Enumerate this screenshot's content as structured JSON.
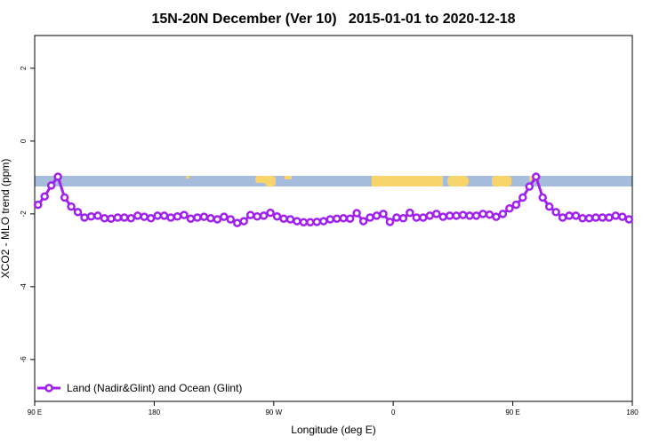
{
  "chart_data": {
    "type": "line",
    "title": "15N-20N December (Ver 10)   2015-01-01 to 2020-12-18",
    "x_label": "Longitude (deg E)",
    "y_label": "XCO2 - MLO trend (ppm)",
    "xlim": [
      90,
      540
    ],
    "xticks": [
      {
        "value": 90,
        "label": "90 E"
      },
      {
        "value": 180,
        "label": "180"
      },
      {
        "value": 270,
        "label": "90 W"
      },
      {
        "value": 360,
        "label": "0"
      },
      {
        "value": 450,
        "label": "90 E"
      },
      {
        "value": 540,
        "label": "180"
      }
    ],
    "ylim": [
      -7.15,
      2.9
    ],
    "yticks": [
      -6,
      -4,
      -2,
      0,
      2
    ],
    "legend": "bottom-left",
    "x": [
      92.5,
      97.5,
      102.5,
      107.5,
      112.5,
      117.5,
      122.5,
      127.5,
      132.5,
      137.5,
      142.5,
      147.5,
      152.5,
      157.5,
      162.5,
      167.5,
      172.5,
      177.5,
      182.5,
      187.5,
      192.5,
      197.5,
      202.5,
      207.5,
      212.5,
      217.5,
      222.5,
      227.5,
      232.5,
      237.5,
      242.5,
      247.5,
      252.5,
      257.5,
      262.5,
      267.5,
      272.5,
      277.5,
      282.5,
      287.5,
      292.5,
      297.5,
      302.5,
      307.5,
      312.5,
      317.5,
      322.5,
      327.5,
      332.5,
      337.5,
      342.5,
      347.5,
      352.5,
      357.5,
      362.5,
      367.5,
      372.5,
      377.5,
      382.5,
      387.5,
      392.5,
      397.5,
      402.5,
      407.5,
      412.5,
      417.5,
      422.5,
      427.5,
      432.5,
      437.5,
      442.5,
      447.5,
      452.5,
      457.5,
      462.5,
      467.5,
      472.5,
      477.5,
      482.5,
      487.5,
      492.5,
      497.5,
      502.5,
      507.5,
      512.5,
      517.5,
      522.5,
      527.5,
      532.5,
      537.5
    ],
    "series": [
      {
        "name": "Land (Nadir&Glint) and Ocean (Glint)",
        "color": "#a020f0",
        "values": [
          -1.75,
          -1.52,
          -1.22,
          -0.98,
          -1.55,
          -1.8,
          -1.95,
          -2.1,
          -2.07,
          -2.05,
          -2.12,
          -2.13,
          -2.1,
          -2.1,
          -2.12,
          -2.05,
          -2.08,
          -2.12,
          -2.05,
          -2.05,
          -2.1,
          -2.07,
          -2.03,
          -2.13,
          -2.1,
          -2.08,
          -2.12,
          -2.15,
          -2.08,
          -2.15,
          -2.25,
          -2.2,
          -2.03,
          -2.07,
          -2.05,
          -1.97,
          -2.07,
          -2.13,
          -2.15,
          -2.2,
          -2.23,
          -2.23,
          -2.22,
          -2.2,
          -2.15,
          -2.13,
          -2.12,
          -2.13,
          -1.98,
          -2.2,
          -2.1,
          -2.05,
          -2.0,
          -2.22,
          -2.1,
          -2.12,
          -1.97,
          -2.1,
          -2.1,
          -2.05,
          -2.0,
          -2.08,
          -2.05,
          -2.05,
          -2.03,
          -2.05,
          -2.05,
          -2.0,
          -2.02,
          -2.08,
          -2.0,
          -1.85,
          -1.75,
          -1.55,
          -1.25,
          -0.98,
          -1.55,
          -1.8,
          -1.95,
          -2.1,
          -2.05,
          -2.05,
          -2.12,
          -2.12,
          -2.1,
          -2.1,
          -2.1,
          -2.05,
          -2.08,
          -2.15
        ]
      }
    ]
  }
}
